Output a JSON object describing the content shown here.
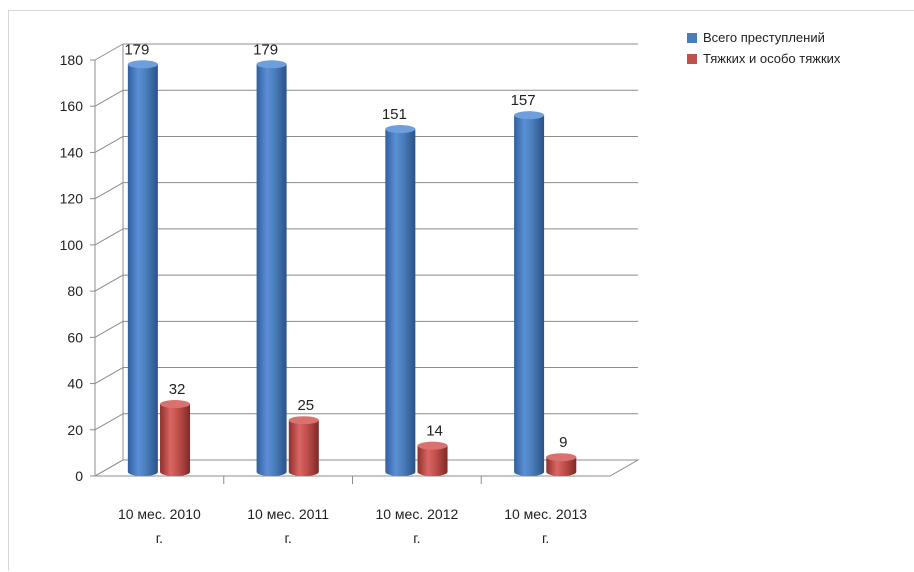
{
  "chart_data": {
    "type": "bar",
    "title": "",
    "xlabel": "",
    "ylabel": "",
    "ylim": [
      0,
      180
    ],
    "yticks": [
      0,
      20,
      40,
      60,
      80,
      100,
      120,
      140,
      160,
      180
    ],
    "categories": [
      [
        "10 мес. 2010",
        "г."
      ],
      [
        "10 мес. 2011",
        "г."
      ],
      [
        "10 мес. 2012",
        "г."
      ],
      [
        "10 мес. 2013",
        "г."
      ]
    ],
    "series": [
      {
        "name": "Всего преступлений",
        "values": [
          179,
          179,
          151,
          157
        ],
        "color": "#4a7ebb"
      },
      {
        "name": "Тяжких и особо тяжких",
        "values": [
          32,
          25,
          14,
          9
        ],
        "color": "#c0504d"
      }
    ],
    "grid": true,
    "legend_position": "top-right"
  }
}
